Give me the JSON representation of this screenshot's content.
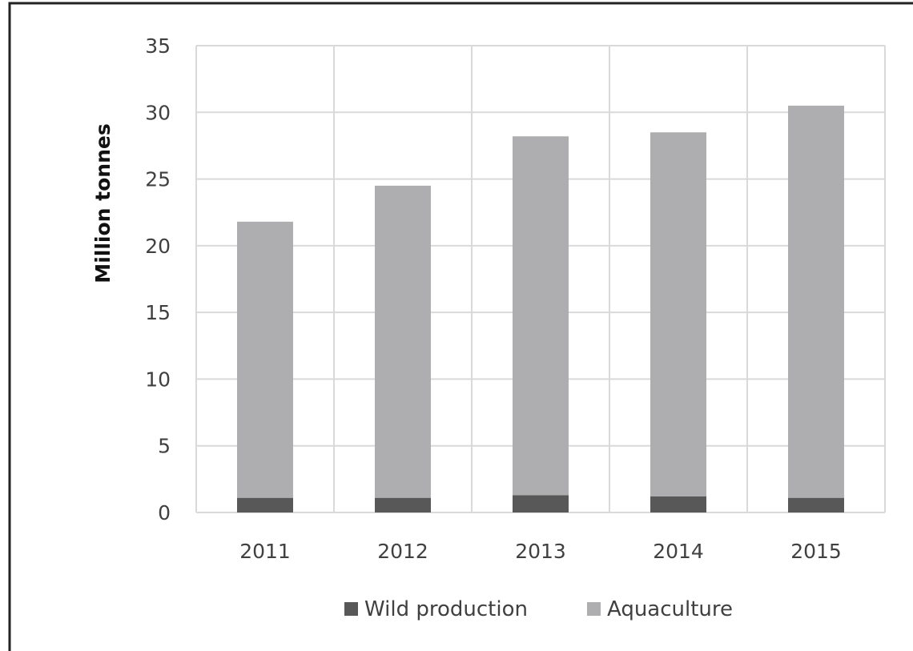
{
  "colors": {
    "wild": "#585858",
    "aquaculture": "#aeadaf",
    "grid": "#d9d9d9",
    "frame": "#222222",
    "text": "#404040"
  },
  "chart_data": {
    "type": "bar",
    "stacked": true,
    "categories": [
      "2011",
      "2012",
      "2013",
      "2014",
      "2015"
    ],
    "series": [
      {
        "name": "Wild production",
        "values": [
          1.1,
          1.1,
          1.3,
          1.2,
          1.1
        ]
      },
      {
        "name": "Aquaculture",
        "values": [
          20.7,
          23.4,
          26.9,
          27.3,
          29.4
        ]
      }
    ],
    "ylabel": "Million tonnes",
    "xlabel": "",
    "ylim": [
      0,
      35
    ],
    "yticks": [
      0,
      5,
      10,
      15,
      20,
      25,
      30,
      35
    ],
    "grid": true,
    "legend_position": "bottom"
  }
}
